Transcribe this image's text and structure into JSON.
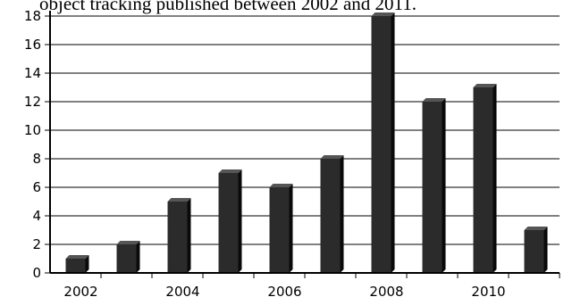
{
  "caption": "object tracking published between 2002 and 2011.",
  "chart_data": {
    "type": "bar",
    "title": "",
    "xlabel": "",
    "ylabel": "",
    "categories": [
      "2002",
      "2003",
      "2004",
      "2005",
      "2006",
      "2007",
      "2008",
      "2009",
      "2010",
      "2011"
    ],
    "x_tick_labels": [
      "2002",
      "2004",
      "2006",
      "2008",
      "2010"
    ],
    "values": [
      1,
      2,
      5,
      7,
      6,
      8,
      18,
      12,
      13,
      3
    ],
    "ylim": [
      0,
      18
    ],
    "y_ticks": [
      0,
      2,
      4,
      6,
      8,
      10,
      12,
      14,
      16,
      18
    ],
    "grid": "horizontal",
    "legend": "none",
    "bar_color": "#2b2b2b"
  }
}
